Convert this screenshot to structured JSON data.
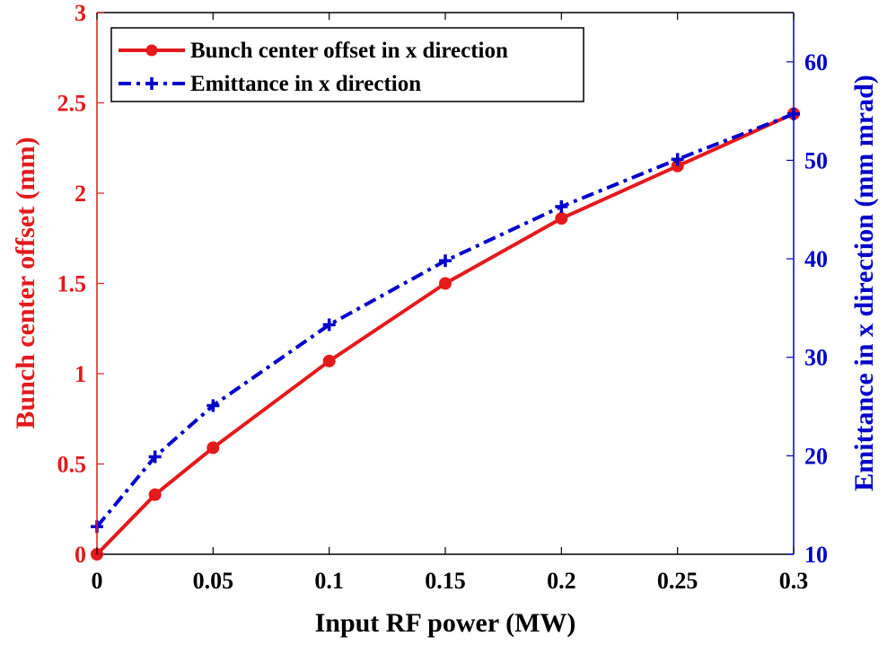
{
  "chart_data": {
    "type": "line",
    "xlabel": "Input RF power (MW)",
    "ylabel_left": "Bunch center offset (mm)",
    "ylabel_right": "Emittance in x direction (mm mrad)",
    "xlim": [
      0,
      0.3
    ],
    "ylim_left": [
      0,
      3
    ],
    "ylim_right": [
      10,
      65
    ],
    "x_ticks": [
      "0",
      "0.05",
      "0.1",
      "0.15",
      "0.2",
      "0.25",
      "0.3"
    ],
    "x_tick_values": [
      0,
      0.05,
      0.1,
      0.15,
      0.2,
      0.25,
      0.3
    ],
    "y_left_ticks": [
      "0",
      "0.5",
      "1",
      "1.5",
      "2",
      "2.5",
      "3"
    ],
    "y_left_tick_values": [
      0,
      0.5,
      1,
      1.5,
      2,
      2.5,
      3
    ],
    "y_right_ticks": [
      "10",
      "20",
      "30",
      "40",
      "50",
      "60"
    ],
    "y_right_tick_values": [
      10,
      20,
      30,
      40,
      50,
      60
    ],
    "grid": false,
    "legend_position": "top-left",
    "left_axis_color": "#e41a1c",
    "right_axis_color": "#0000cc",
    "series": [
      {
        "name": "Bunch center offset in x direction",
        "axis": "left",
        "color": "#e41a1c",
        "line_style": "solid",
        "marker": "circle",
        "x": [
          0,
          0.025,
          0.05,
          0.1,
          0.15,
          0.2,
          0.25,
          0.3
        ],
        "values": [
          0,
          0.33,
          0.59,
          1.07,
          1.5,
          1.86,
          2.15,
          2.44
        ]
      },
      {
        "name": "Emittance in x direction",
        "axis": "right",
        "color": "#0000cc",
        "line_style": "dash-dot",
        "marker": "plus",
        "x": [
          0,
          0.025,
          0.05,
          0.1,
          0.15,
          0.2,
          0.25,
          0.3
        ],
        "values": [
          12.8,
          19.9,
          25.1,
          33.3,
          39.8,
          45.3,
          50.1,
          54.7
        ]
      }
    ]
  }
}
